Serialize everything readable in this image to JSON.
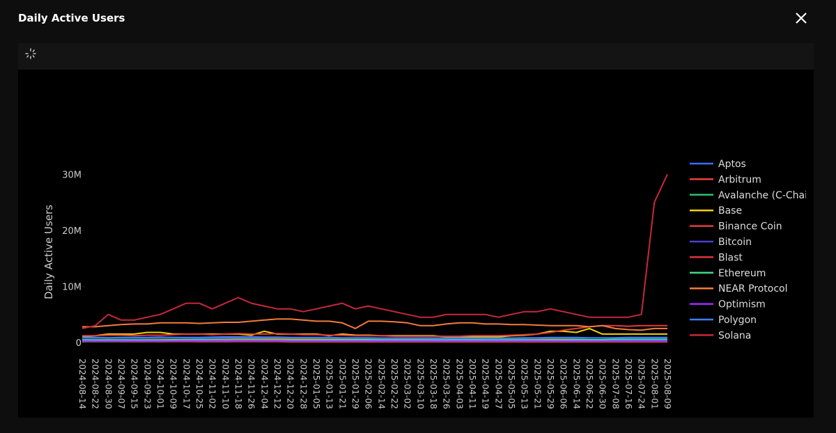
{
  "modal": {
    "title": "Daily Active Users"
  },
  "chart_data": {
    "type": "line",
    "y_label": "Daily Active Users",
    "x": [
      "2024-08-14",
      "2024-08-22",
      "2024-08-30",
      "2024-09-07",
      "2024-09-15",
      "2024-09-23",
      "2024-10-01",
      "2024-10-09",
      "2024-10-17",
      "2024-10-25",
      "2024-11-02",
      "2024-11-10",
      "2024-11-18",
      "2024-11-26",
      "2024-12-04",
      "2024-12-12",
      "2024-12-20",
      "2024-12-28",
      "2025-01-05",
      "2025-01-13",
      "2025-01-21",
      "2025-01-29",
      "2025-02-06",
      "2025-02-14",
      "2025-02-22",
      "2025-03-02",
      "2025-03-10",
      "2025-03-18",
      "2025-03-26",
      "2025-04-03",
      "2025-04-11",
      "2025-04-19",
      "2025-04-27",
      "2025-05-05",
      "2025-05-13",
      "2025-05-21",
      "2025-05-29",
      "2025-06-06",
      "2025-06-14",
      "2025-06-22",
      "2025-06-30",
      "2025-07-08",
      "2025-07-16",
      "2025-07-24",
      "2025-08-01",
      "2025-08-09"
    ],
    "ylim": [
      0,
      35000000
    ],
    "yticks": [
      0,
      {
        "value": 10000000,
        "label": "10M"
      },
      {
        "value": 20000000,
        "label": "20M"
      },
      {
        "value": 30000000,
        "label": "30M"
      }
    ],
    "series": [
      {
        "name": "Aptos",
        "color": "#3b6cff",
        "values": [
          800000,
          800000,
          850000,
          800000,
          800000,
          850000,
          900000,
          900000,
          850000,
          800000,
          800000,
          850000,
          800000,
          800000,
          850000,
          800000,
          800000,
          750000,
          800000,
          800000,
          800000,
          750000,
          700000,
          700000,
          700000,
          700000,
          650000,
          700000,
          700000,
          650000,
          650000,
          700000,
          700000,
          700000,
          750000,
          800000,
          800000,
          850000,
          800000,
          800000,
          800000,
          750000,
          800000,
          800000,
          800000,
          800000
        ]
      },
      {
        "name": "Arbitrum",
        "color": "#e8453c",
        "values": [
          500000,
          500000,
          550000,
          500000,
          500000,
          550000,
          600000,
          600000,
          600000,
          550000,
          600000,
          650000,
          700000,
          650000,
          700000,
          750000,
          700000,
          650000,
          650000,
          600000,
          600000,
          550000,
          550000,
          500000,
          500000,
          500000,
          500000,
          450000,
          450000,
          450000,
          500000,
          450000,
          450000,
          500000,
          500000,
          550000,
          600000,
          600000,
          550000,
          500000,
          500000,
          500000,
          450000,
          450000,
          500000,
          500000
        ]
      },
      {
        "name": "Avalanche (C-Chain)",
        "color": "#2fbf6e",
        "values": [
          150000,
          150000,
          150000,
          150000,
          150000,
          150000,
          150000,
          200000,
          200000,
          150000,
          150000,
          150000,
          200000,
          200000,
          200000,
          200000,
          150000,
          150000,
          150000,
          150000,
          150000,
          150000,
          150000,
          150000,
          150000,
          150000,
          150000,
          150000,
          150000,
          150000,
          150000,
          150000,
          150000,
          150000,
          150000,
          150000,
          200000,
          200000,
          150000,
          150000,
          150000,
          150000,
          150000,
          150000,
          150000,
          150000
        ]
      },
      {
        "name": "Base",
        "color": "#f5d20a",
        "values": [
          1000000,
          1200000,
          1500000,
          1500000,
          1500000,
          1800000,
          1800000,
          1500000,
          1500000,
          1500000,
          1500000,
          1500000,
          1500000,
          1300000,
          2000000,
          1500000,
          1500000,
          1500000,
          1500000,
          1200000,
          1500000,
          1300000,
          1300000,
          1200000,
          1200000,
          1200000,
          1200000,
          1200000,
          1000000,
          1000000,
          1000000,
          1000000,
          1000000,
          1200000,
          1300000,
          1500000,
          2000000,
          2000000,
          1800000,
          2500000,
          1500000,
          1500000,
          1500000,
          1500000,
          1500000,
          1500000
        ]
      },
      {
        "name": "Binance Coin",
        "color": "#e33b3b",
        "values": [
          1200000,
          1200000,
          1300000,
          1300000,
          1200000,
          1300000,
          1300000,
          1400000,
          1500000,
          1500000,
          1400000,
          1500000,
          1600000,
          1500000,
          1500000,
          1600000,
          1500000,
          1400000,
          1400000,
          1300000,
          1300000,
          1200000,
          1200000,
          1200000,
          1100000,
          1100000,
          1100000,
          1100000,
          1100000,
          1100000,
          1200000,
          1200000,
          1200000,
          1300000,
          1400000,
          1500000,
          1800000,
          2200000,
          2500000,
          2800000,
          3000000,
          3000000,
          2900000,
          3000000,
          3000000,
          3000000
        ]
      },
      {
        "name": "Bitcoin",
        "color": "#4a3fd1",
        "values": [
          500000,
          500000,
          500000,
          500000,
          500000,
          500000,
          500000,
          550000,
          550000,
          550000,
          550000,
          550000,
          550000,
          500000,
          500000,
          500000,
          500000,
          500000,
          500000,
          500000,
          500000,
          500000,
          500000,
          450000,
          450000,
          450000,
          450000,
          450000,
          450000,
          450000,
          450000,
          450000,
          450000,
          450000,
          450000,
          450000,
          450000,
          450000,
          450000,
          450000,
          450000,
          450000,
          450000,
          450000,
          450000,
          450000
        ]
      },
      {
        "name": "Blast",
        "color": "#e0353a",
        "values": [
          200000,
          200000,
          200000,
          150000,
          150000,
          150000,
          150000,
          150000,
          150000,
          150000,
          150000,
          150000,
          150000,
          150000,
          150000,
          150000,
          100000,
          100000,
          100000,
          100000,
          100000,
          100000,
          100000,
          100000,
          100000,
          100000,
          100000,
          100000,
          100000,
          100000,
          100000,
          100000,
          100000,
          100000,
          100000,
          100000,
          100000,
          100000,
          100000,
          100000,
          100000,
          100000,
          100000,
          100000,
          100000,
          100000
        ]
      },
      {
        "name": "Ethereum",
        "color": "#3ddc86",
        "values": [
          450000,
          450000,
          450000,
          450000,
          450000,
          450000,
          450000,
          500000,
          500000,
          500000,
          500000,
          500000,
          550000,
          550000,
          550000,
          550000,
          500000,
          500000,
          500000,
          500000,
          500000,
          500000,
          500000,
          450000,
          450000,
          450000,
          450000,
          450000,
          450000,
          450000,
          450000,
          450000,
          450000,
          450000,
          450000,
          450000,
          500000,
          500000,
          500000,
          500000,
          500000,
          550000,
          550000,
          550000,
          550000,
          550000
        ]
      },
      {
        "name": "NEAR Protocol",
        "color": "#f47c3c",
        "values": [
          2800000,
          2800000,
          3000000,
          3200000,
          3300000,
          3300000,
          3500000,
          3500000,
          3500000,
          3400000,
          3500000,
          3600000,
          3600000,
          3800000,
          4000000,
          4200000,
          4200000,
          4000000,
          3800000,
          3800000,
          3500000,
          2500000,
          3800000,
          3800000,
          3700000,
          3500000,
          3000000,
          3000000,
          3300000,
          3500000,
          3500000,
          3300000,
          3300000,
          3200000,
          3200000,
          3100000,
          3000000,
          3000000,
          3000000,
          2800000,
          3000000,
          2500000,
          2300000,
          2200000,
          2500000,
          2500000
        ]
      },
      {
        "name": "Optimism",
        "color": "#9b2cff",
        "values": [
          250000,
          250000,
          250000,
          250000,
          250000,
          250000,
          250000,
          250000,
          300000,
          300000,
          300000,
          300000,
          300000,
          300000,
          300000,
          300000,
          250000,
          250000,
          250000,
          250000,
          250000,
          250000,
          250000,
          250000,
          250000,
          250000,
          250000,
          250000,
          250000,
          250000,
          250000,
          250000,
          250000,
          250000,
          250000,
          250000,
          250000,
          250000,
          250000,
          250000,
          250000,
          250000,
          250000,
          250000,
          250000,
          250000
        ]
      },
      {
        "name": "Polygon",
        "color": "#3f7dff",
        "values": [
          900000,
          900000,
          850000,
          900000,
          900000,
          900000,
          950000,
          900000,
          900000,
          900000,
          950000,
          1000000,
          1000000,
          1000000,
          950000,
          950000,
          900000,
          900000,
          900000,
          900000,
          850000,
          850000,
          850000,
          800000,
          800000,
          800000,
          800000,
          800000,
          800000,
          800000,
          800000,
          800000,
          800000,
          800000,
          850000,
          850000,
          900000,
          900000,
          900000,
          850000,
          850000,
          850000,
          900000,
          900000,
          900000,
          900000
        ]
      },
      {
        "name": "Solana",
        "color": "#c8283a",
        "values": [
          2500000,
          3000000,
          5000000,
          4000000,
          4000000,
          4500000,
          5000000,
          6000000,
          7000000,
          7000000,
          6000000,
          7000000,
          8000000,
          7000000,
          6500000,
          6000000,
          6000000,
          5500000,
          6000000,
          6500000,
          7000000,
          6000000,
          6500000,
          6000000,
          5500000,
          5000000,
          4500000,
          4500000,
          5000000,
          5000000,
          5000000,
          5000000,
          4500000,
          5000000,
          5500000,
          5500000,
          6000000,
          5500000,
          5000000,
          4500000,
          4500000,
          4500000,
          4500000,
          5000000,
          25000000,
          30000000
        ]
      }
    ]
  }
}
